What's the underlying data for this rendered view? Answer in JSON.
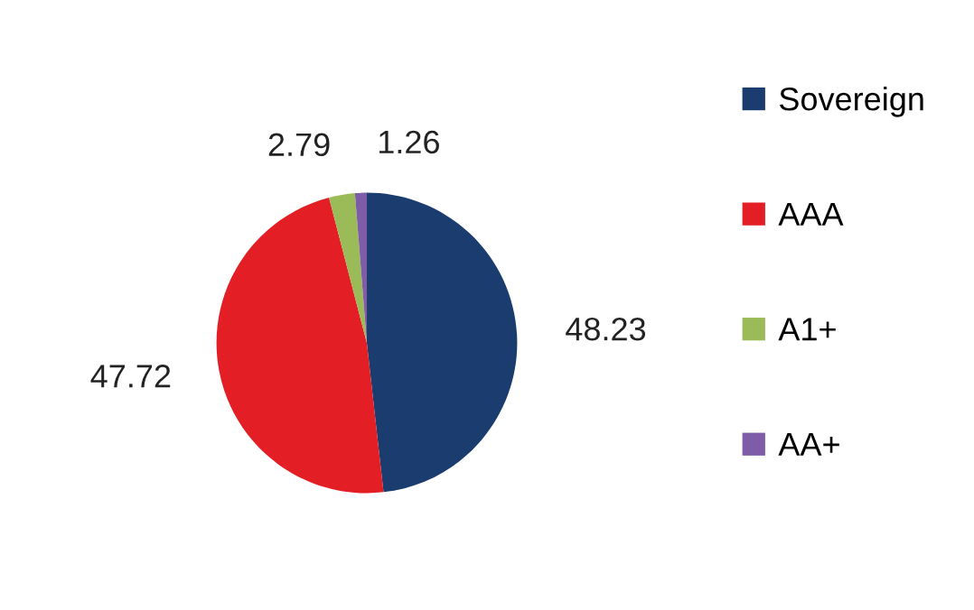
{
  "chart_data": {
    "type": "pie",
    "categories": [
      "Sovereign",
      "AAA",
      "A1+",
      "AA+"
    ],
    "values": [
      48.23,
      47.72,
      2.79,
      1.26
    ],
    "colors": [
      "#1a3c6e",
      "#e31e24",
      "#9bbb59",
      "#7e5ca7"
    ],
    "data_labels": true,
    "legend": "right"
  }
}
